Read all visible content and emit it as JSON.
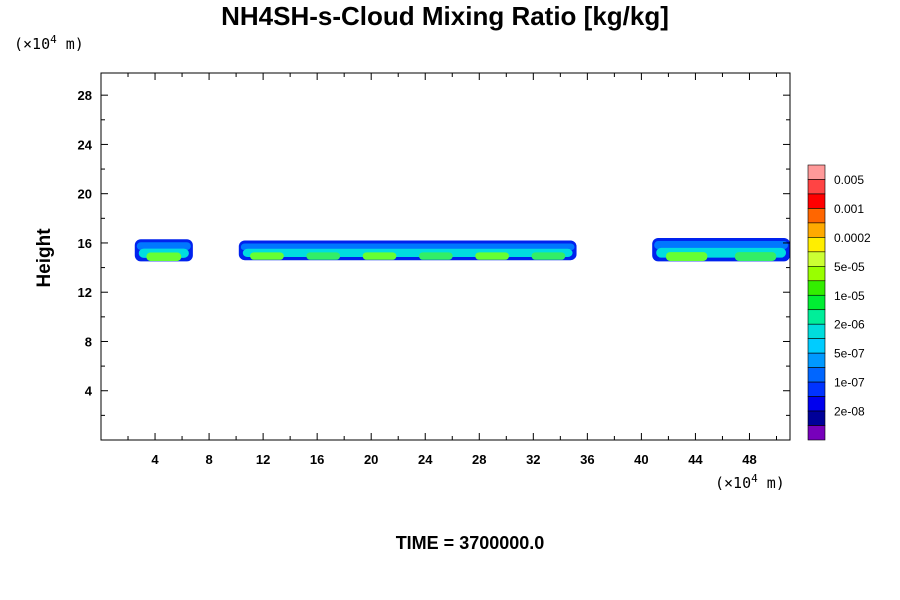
{
  "chart_data": {
    "type": "heatmap",
    "title": "NH4SH-s-Cloud Mixing Ratio [kg/kg]",
    "ylabel": "Height",
    "x_unit_label": [
      "(×10",
      "4",
      " m)"
    ],
    "y_unit_label": [
      "(×10",
      "4",
      " m)"
    ],
    "xlim": [
      0,
      51
    ],
    "ylim": [
      0,
      29.8
    ],
    "x_ticks": [
      4,
      8,
      12,
      16,
      20,
      24,
      28,
      32,
      36,
      40,
      44,
      48
    ],
    "y_ticks": [
      4,
      8,
      12,
      16,
      20,
      24,
      28
    ],
    "footer": "TIME = 3700000.0",
    "legend": {
      "placement": "right",
      "labels": [
        "0.005",
        "0.001",
        "0.0002",
        "5e-05",
        "1e-05",
        "2e-06",
        "5e-07",
        "1e-07",
        "2e-08"
      ],
      "colors_top_to_bottom": [
        "#ff9999",
        "#ff4444",
        "#ff0000",
        "#ff6600",
        "#ffaa00",
        "#ffee00",
        "#ccff33",
        "#99ff00",
        "#33ee00",
        "#00ee33",
        "#00ee99",
        "#00dddd",
        "#00ccff",
        "#0099ff",
        "#0066ff",
        "#0033ff",
        "#0000ee",
        "#000099",
        "#7700bb"
      ]
    },
    "cloud_bands": [
      {
        "x_start": 2.5,
        "x_end": 6.8,
        "y_bottom": 14.5,
        "y_top": 16.3
      },
      {
        "x_start": 10.2,
        "x_end": 35.2,
        "y_bottom": 14.6,
        "y_top": 16.2
      },
      {
        "x_start": 40.8,
        "x_end": 51,
        "y_bottom": 14.5,
        "y_top": 16.4
      }
    ]
  }
}
